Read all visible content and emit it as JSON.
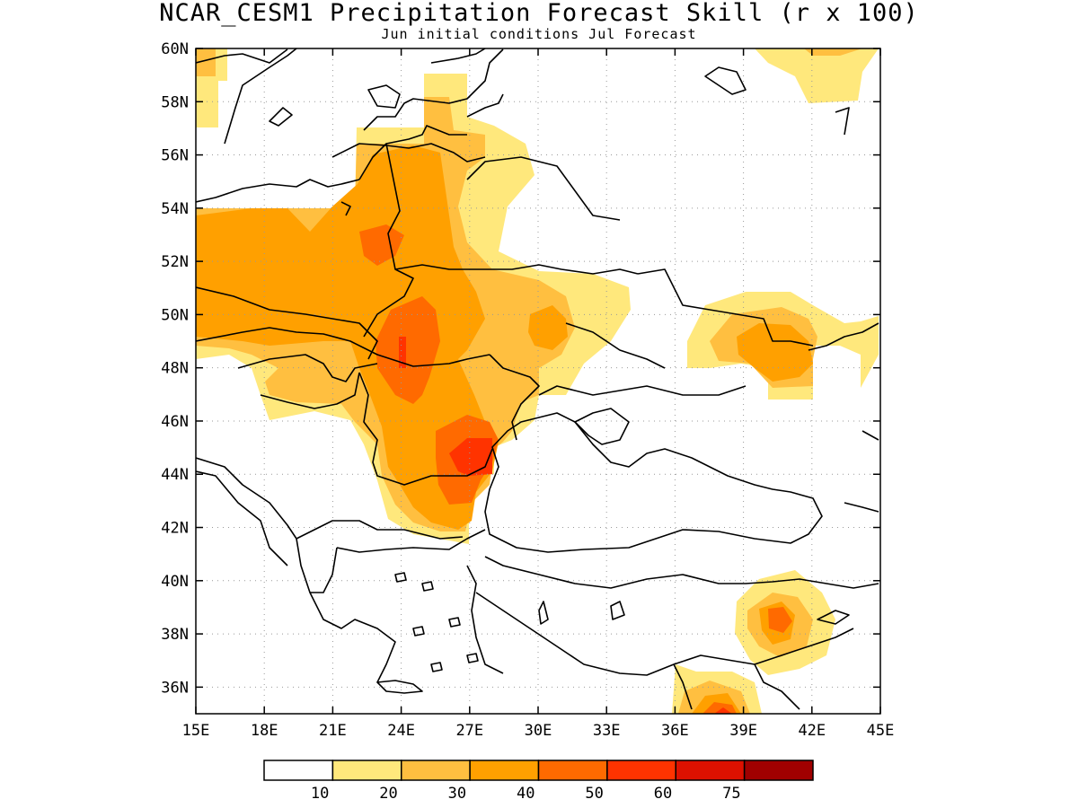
{
  "title": "NCAR_CESM1 Precipitation Forecast Skill (r x 100)",
  "subtitle": "Jun initial conditions  Jul Forecast",
  "map": {
    "lon_range": [
      15,
      45
    ],
    "lat_range": [
      35,
      60
    ],
    "lat_ticks": [
      "60N",
      "58N",
      "56N",
      "54N",
      "52N",
      "50N",
      "48N",
      "46N",
      "44N",
      "42N",
      "40N",
      "38N",
      "36N"
    ],
    "lon_ticks": [
      "15E",
      "18E",
      "21E",
      "24E",
      "27E",
      "30E",
      "33E",
      "36E",
      "39E",
      "42E",
      "45E"
    ],
    "gridlines": "dotted"
  },
  "legend": {
    "colors": [
      "#ffffff",
      "#ffe87c",
      "#ffbf40",
      "#ffa000",
      "#ff6a00",
      "#ff3300",
      "#dd1100",
      "#a00000"
    ],
    "labels": [
      "10",
      "20",
      "30",
      "40",
      "50",
      "60",
      "75"
    ]
  },
  "colors": {
    "c10": "#ffe87c",
    "c20": "#ffbf40",
    "c30": "#ffa000",
    "c40": "#ff6a00",
    "c50": "#ff3300"
  }
}
